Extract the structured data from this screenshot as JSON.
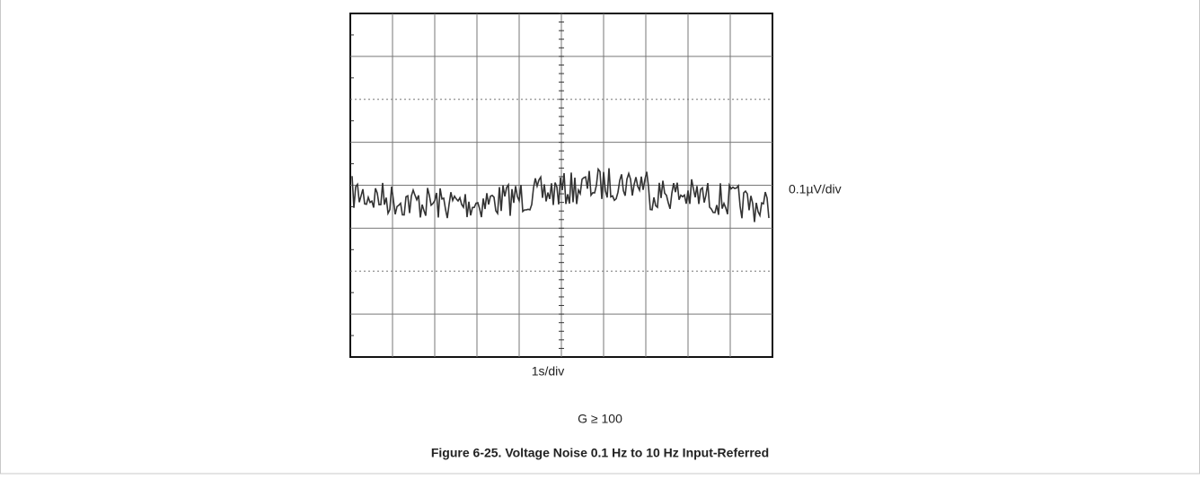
{
  "figure": {
    "y_scale_label": "0.1µV/div",
    "x_scale_label": "1s/div",
    "condition": "G ≥ 100",
    "caption": "Figure 6-25. Voltage Noise 0.1 Hz to 10 Hz Input-Referred"
  }
}
